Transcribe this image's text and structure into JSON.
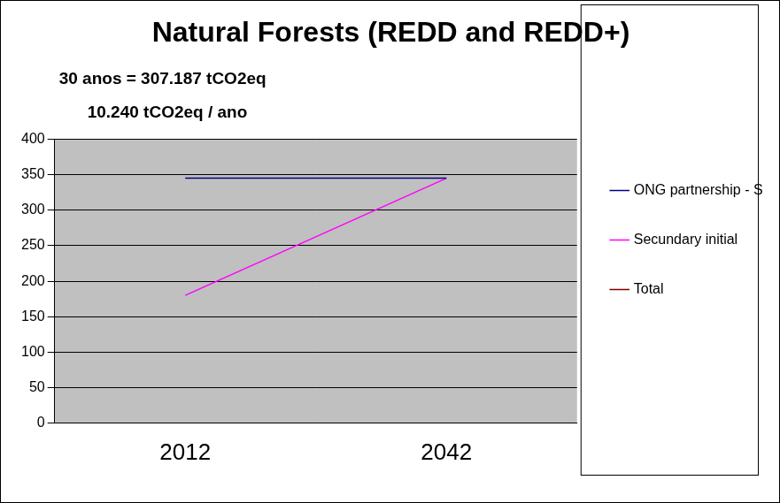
{
  "chart_data": {
    "type": "line",
    "title": "Natural Forests (REDD and REDD+)",
    "annotations": [
      "30 anos = 307.187 tCO2eq",
      "10.240 tCO2eq / ano"
    ],
    "categories": [
      "2012",
      "2042"
    ],
    "series": [
      {
        "name": "ONG partnership - Secundary",
        "color": "#000080",
        "values": [
          345,
          345
        ]
      },
      {
        "name": "Secundary initial",
        "color": "#ff00ff",
        "values": [
          180,
          345
        ]
      },
      {
        "name": "Total",
        "color": "#800000",
        "values": [
          null,
          null
        ]
      }
    ],
    "ylim": [
      0,
      400
    ],
    "yticks": [
      0,
      50,
      100,
      150,
      200,
      250,
      300,
      350,
      400
    ],
    "grid": true,
    "legend": "right"
  }
}
